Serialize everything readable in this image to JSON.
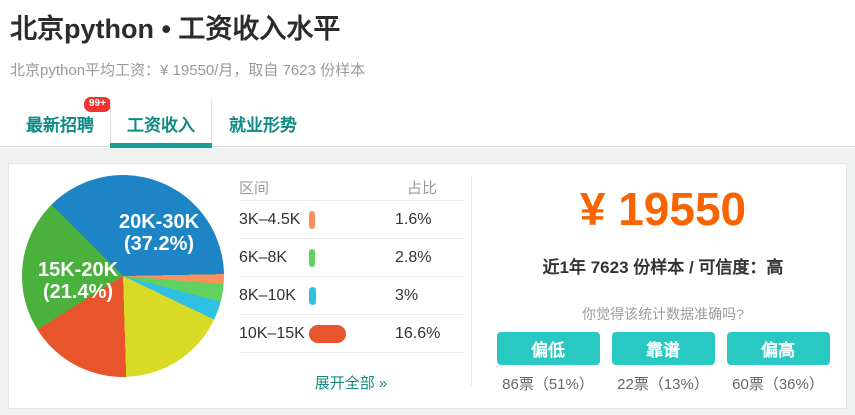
{
  "header": {
    "title": "北京python • 工资收入水平",
    "subtitle": "北京python平均工资：¥ 19550/月，取自 7623 份样本"
  },
  "tabs": [
    {
      "label": "最新招聘",
      "badge": "99+",
      "active": false
    },
    {
      "label": "工资收入",
      "active": true
    },
    {
      "label": "就业形势",
      "active": false
    }
  ],
  "chart_data": {
    "type": "pie",
    "start_angle_deg": -45,
    "legend_position": "none",
    "slices": [
      {
        "label": "20K-30K",
        "pct_text": "(37.2%)",
        "value": 37.2,
        "color": "#1d85c6"
      },
      {
        "label": "3K-4.5K",
        "pct_text": "",
        "value": 1.6,
        "color": "#f9915f"
      },
      {
        "label": "6K-8K",
        "pct_text": "",
        "value": 2.8,
        "color": "#5fd25f"
      },
      {
        "label": "8K-10K",
        "pct_text": "",
        "value": 3.0,
        "color": "#2fc1e4"
      },
      {
        "label": "",
        "pct_text": "",
        "value": 17.4,
        "color": "#d9da25"
      },
      {
        "label": "10K-15K",
        "pct_text": "",
        "value": 16.6,
        "color": "#e8542b"
      },
      {
        "label": "15K-20K",
        "pct_text": "(21.4%)",
        "value": 21.4,
        "color": "#49b13c"
      }
    ]
  },
  "distribution_table": {
    "headers": {
      "range": "区间",
      "pct": "占比"
    },
    "rows": [
      {
        "range": "3K–4.5K",
        "percent": "1.6%",
        "value": 1.6,
        "color": "#f9915f"
      },
      {
        "range": "6K–8K",
        "percent": "2.8%",
        "value": 2.8,
        "color": "#5fd25f"
      },
      {
        "range": "8K–10K",
        "percent": "3%",
        "value": 3.0,
        "color": "#2fc1e4"
      },
      {
        "range": "10K–15K",
        "percent": "16.6%",
        "value": 16.6,
        "color": "#e8542b"
      }
    ],
    "expand_link": "展开全部 »"
  },
  "salary_panel": {
    "amount": "¥ 19550",
    "sample_line": "近1年 7623 份样本 / 可信度：高",
    "question": "你觉得该统计数据准确吗?",
    "vote_options": [
      {
        "label": "偏低",
        "result": "86票（51%）"
      },
      {
        "label": "靠谱",
        "result": "22票（13%）"
      },
      {
        "label": "偏高",
        "result": "60票（36%）"
      }
    ]
  },
  "colors": {
    "accent_teal": "#0e8c84",
    "tab_underline": "#16a096",
    "badge_red": "#f0342e",
    "amount_orange": "#fa6400",
    "vote_button_teal": "#29c8c3"
  }
}
